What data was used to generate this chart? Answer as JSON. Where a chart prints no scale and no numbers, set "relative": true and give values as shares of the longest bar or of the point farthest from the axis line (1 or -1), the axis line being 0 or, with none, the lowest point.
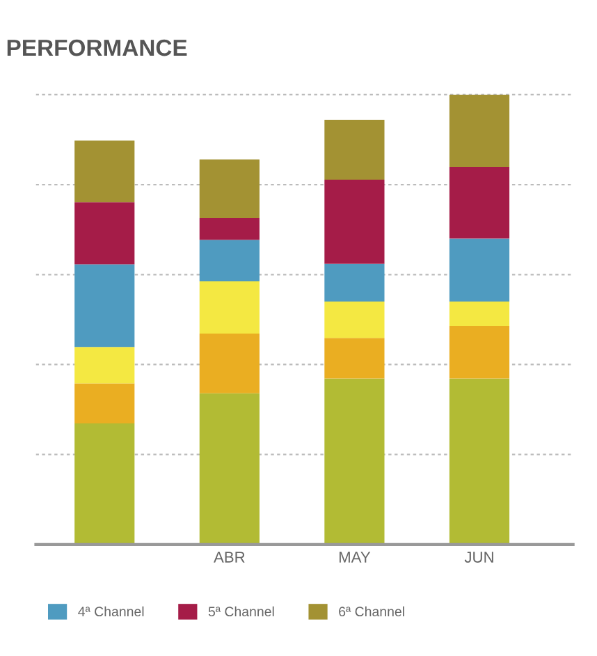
{
  "chart_data": {
    "type": "bar",
    "title": "PERFORMANCE",
    "stacked": true,
    "relative": true,
    "categories": [
      null,
      "ABR",
      "MAY",
      "JUN"
    ],
    "series": [
      {
        "color": "#b2bb34",
        "values": [
          0.269,
          0.336,
          0.369,
          0.369
        ]
      },
      {
        "color": "#eaae22",
        "values": [
          0.089,
          0.133,
          0.09,
          0.117
        ]
      },
      {
        "color": "#f4e842",
        "values": [
          0.081,
          0.116,
          0.081,
          0.054
        ]
      },
      {
        "name": "4ª Channel",
        "color": "#4f9bc0",
        "values": [
          0.184,
          0.092,
          0.084,
          0.14
        ]
      },
      {
        "name": "5ª Channel",
        "color": "#a51c48",
        "values": [
          0.138,
          0.049,
          0.187,
          0.159
        ]
      },
      {
        "name": "6ª Channel",
        "color": "#a39233",
        "values": [
          0.137,
          0.13,
          0.133,
          0.161
        ]
      }
    ],
    "grid": "y",
    "legend": "bottom",
    "tick_labels": "x"
  }
}
